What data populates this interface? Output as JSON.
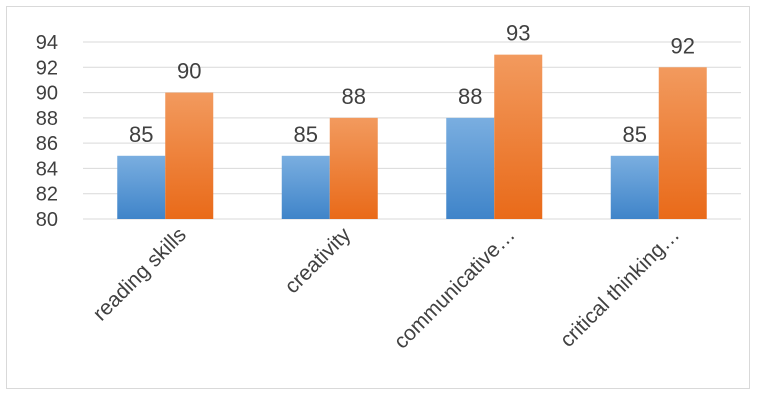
{
  "chart_data": {
    "type": "bar",
    "categories": [
      "reading skills",
      "creativity",
      "communicative…",
      "critical thinking…"
    ],
    "series": [
      {
        "values": [
          85,
          85,
          88,
          85
        ],
        "color": "#5b9bd5",
        "color_light": "#7aaee0",
        "color_dark": "#3f84c9"
      },
      {
        "values": [
          90,
          88,
          93,
          92
        ],
        "color": "#ed7d31",
        "color_light": "#f29a5e",
        "color_dark": "#e96a19"
      }
    ],
    "ylim": [
      80,
      94
    ],
    "yticks": [
      "80",
      "82",
      "84",
      "86",
      "88",
      "90",
      "92",
      "94"
    ],
    "grid": true,
    "data_labels": true,
    "legend": "none"
  }
}
